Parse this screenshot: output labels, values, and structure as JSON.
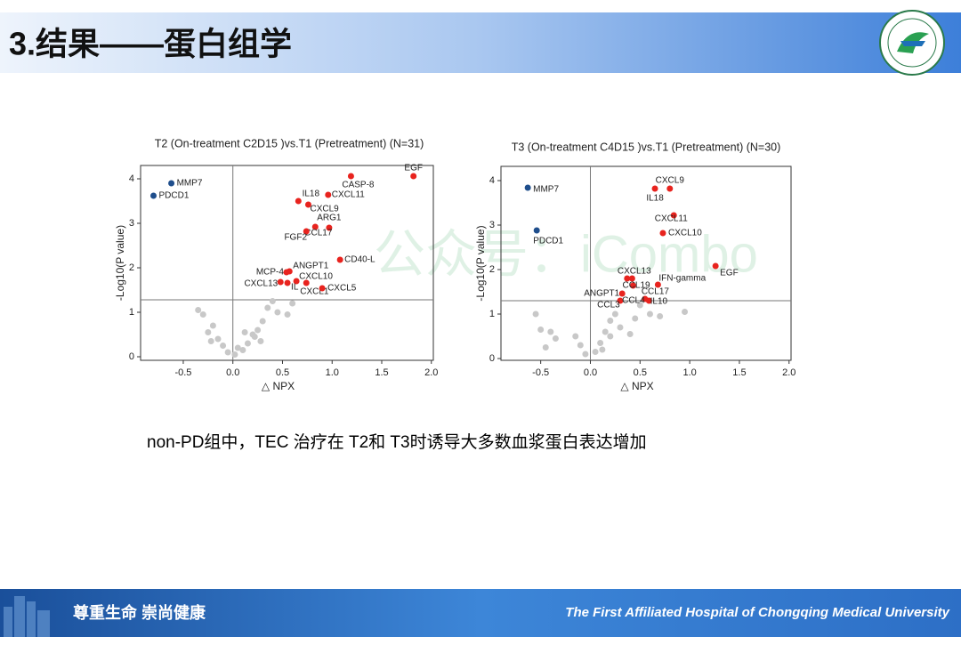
{
  "header": {
    "title": "3.结果——蛋白组学"
  },
  "watermark": "公众号：iCombo",
  "caption": "non-PD组中，TEC 治疗在 T2和 T3时诱导大多数血浆蛋白表达增加",
  "footer": {
    "slogan": "尊重生命  崇尚健康",
    "hospital": "The First Affiliated Hospital of Chongqing Medical University"
  },
  "chart_data": [
    {
      "type": "scatter",
      "title": "T2 (On-treatment C2D15 )vs.T1 (Pretreatment)  (N=31)",
      "x_label": "△ NPX",
      "y_label": "-Log10(P value)",
      "xlim": [
        -0.93,
        2.02
      ],
      "ylim": [
        -0.08,
        4.3
      ],
      "xticks": [
        -0.5,
        {
          "value": 0,
          "label": "0.0"
        },
        0.5,
        {
          "value": 1,
          "label": "1.0"
        },
        1.5,
        {
          "value": 2,
          "label": "2.0"
        }
      ],
      "yticks": [
        0,
        1,
        2,
        3,
        4
      ],
      "hline": 1.28,
      "series": [
        {
          "color": "#e8231e",
          "x": [
            1.82,
            1.19,
            0.96,
            0.66,
            0.76,
            0.97,
            0.83,
            0.74,
            1.08,
            0.57,
            0.54,
            0.64,
            0.55,
            0.48,
            0.74,
            0.9
          ],
          "values": [
            4.06,
            4.06,
            3.64,
            3.5,
            3.42,
            2.9,
            2.92,
            2.82,
            2.18,
            1.92,
            1.9,
            1.7,
            1.66,
            1.68,
            1.66,
            1.54
          ],
          "labels": [
            "EGF",
            "CASP-8",
            "CXCL11",
            "IL18",
            "CXCL9",
            "ARG1",
            "CCL17",
            "FGF2",
            "CD40-L",
            "ANGPT1",
            "MCP-4",
            "CXCL10",
            "IL",
            "CXCL13",
            "CXCL1",
            "CXCL5"
          ]
        },
        {
          "color": "#1f4e8c",
          "x": [
            -0.62,
            -0.8
          ],
          "values": [
            3.9,
            3.62
          ],
          "labels": [
            "MMP7",
            "PDCD1"
          ]
        },
        {
          "color": "#c8c8c8",
          "x": [
            -0.35,
            -0.3,
            -0.2,
            -0.25,
            -0.15,
            -0.1,
            -0.05,
            0.02,
            0.1,
            0.15,
            0.2,
            0.25,
            0.3,
            0.22,
            0.05,
            -0.22,
            0.35,
            0.45,
            0.55,
            0.6,
            0.4,
            0.12,
            0.28
          ],
          "values": [
            1.05,
            0.95,
            0.7,
            0.55,
            0.4,
            0.25,
            0.1,
            0.05,
            0.15,
            0.3,
            0.5,
            0.6,
            0.8,
            0.45,
            0.2,
            0.35,
            1.1,
            1.0,
            0.95,
            1.2,
            1.25,
            0.55,
            0.35
          ]
        }
      ]
    },
    {
      "type": "scatter",
      "title": "T3 (On-treatment C4D15 )vs.T1 (Pretreatment)  (N=30)",
      "x_label": "△ NPX",
      "y_label": "-Log10(P value)",
      "xlim": [
        -0.9,
        2.02
      ],
      "ylim": [
        -0.04,
        4.32
      ],
      "xticks": [
        -0.5,
        {
          "value": 0,
          "label": "0.0"
        },
        0.5,
        {
          "value": 1,
          "label": "1.0"
        },
        1.5,
        {
          "value": 2,
          "label": "2.0"
        }
      ],
      "yticks": [
        0,
        1,
        2,
        3,
        4
      ],
      "hline": 1.3,
      "series": [
        {
          "color": "#e8231e",
          "x": [
            0.8,
            0.65,
            0.84,
            0.73,
            1.26,
            0.37,
            0.42,
            0.43,
            0.68,
            0.32,
            0.3,
            0.55,
            0.59
          ],
          "values": [
            3.82,
            3.82,
            3.22,
            2.82,
            2.08,
            1.8,
            1.8,
            1.64,
            1.66,
            1.46,
            1.3,
            1.34,
            1.3
          ],
          "labels": [
            "CXCL9",
            "IL18",
            "CXCL11",
            "CXCL10",
            "EGF",
            "CXCL13",
            "IFN-gamma",
            "CCL19",
            "CCL17",
            "ANGPT1",
            "CCL3",
            "CCL4",
            "IL10"
          ]
        },
        {
          "color": "#1f4e8c",
          "x": [
            -0.63,
            -0.54
          ],
          "values": [
            3.84,
            2.88
          ],
          "labels": [
            "MMP7",
            "PDCD1"
          ]
        },
        {
          "color": "#c8c8c8",
          "x": [
            -0.5,
            -0.4,
            -0.35,
            -0.45,
            -0.15,
            -0.1,
            -0.05,
            0.05,
            0.1,
            0.15,
            0.2,
            0.25,
            0.3,
            0.4,
            0.45,
            0.5,
            0.6,
            0.7,
            0.95,
            0.2,
            0.12,
            -0.55
          ],
          "values": [
            0.65,
            0.6,
            0.45,
            0.25,
            0.5,
            0.3,
            0.1,
            0.15,
            0.35,
            0.6,
            0.85,
            1.0,
            0.7,
            0.55,
            0.9,
            1.2,
            1.0,
            0.95,
            1.05,
            0.5,
            0.2,
            1.0
          ]
        }
      ]
    }
  ]
}
